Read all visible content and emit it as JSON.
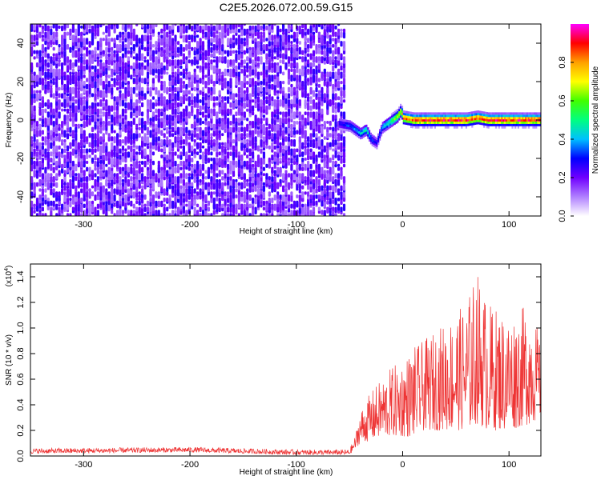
{
  "title": "C2E5.2026.072.00.59.G15",
  "chart_data": [
    {
      "type": "heatmap",
      "name": "spectrogram",
      "xlabel": "Height of straight line (km)",
      "ylabel": "Frequency (Hz)",
      "xlim": [
        -350,
        130
      ],
      "ylim": [
        -50,
        50
      ],
      "x_ticks": [
        -300,
        -200,
        -100,
        0,
        100
      ],
      "y_ticks": [
        -40,
        -20,
        0,
        20,
        40
      ],
      "noise_region": {
        "x": [
          -350,
          -55
        ],
        "y": [
          -50,
          50
        ],
        "description_level": "low (0.1-0.25)"
      },
      "signal_track": {
        "x": [
          -60,
          -50,
          -45,
          -40,
          -35,
          -30,
          -25,
          -20,
          -10,
          -5,
          -2,
          0,
          10,
          20,
          40,
          60,
          70,
          80,
          100,
          130
        ],
        "freq": [
          -2,
          -3,
          -5,
          -7,
          -5,
          -10,
          -12,
          -4,
          0,
          2,
          5,
          1,
          0,
          0,
          0,
          0,
          1,
          0,
          0,
          0
        ],
        "amplitude": [
          0.3,
          0.35,
          0.4,
          0.45,
          0.5,
          0.35,
          0.3,
          0.4,
          0.6,
          0.7,
          0.75,
          0.85,
          0.9,
          0.95,
          0.95,
          0.95,
          0.9,
          0.95,
          0.95,
          0.95
        ]
      }
    },
    {
      "type": "colorbar",
      "name": "amplitude-colorbar",
      "label": "Normalized spectral amplitude",
      "range": [
        0.0,
        1.0
      ],
      "ticks": [
        0.0,
        0.2,
        0.4,
        0.6,
        0.8
      ],
      "tick_labels": [
        "0.0",
        "0.2",
        "0.4",
        "0.6",
        "0.8"
      ],
      "colors": [
        "#ffffff",
        "#b080ff",
        "#7000ff",
        "#0000ff",
        "#00c0ff",
        "#00ff80",
        "#40ff00",
        "#ffff00",
        "#ffa000",
        "#ff0000",
        "#ff00ff"
      ]
    },
    {
      "type": "line",
      "name": "snr",
      "xlabel": "Height of straight line (km)",
      "ylabel": "SNR (10 * v/v)",
      "y_multiplier": "(x10",
      "y_multiplier_exp": "4",
      "xlim": [
        -350,
        130
      ],
      "ylim": [
        0.0,
        1.5
      ],
      "x_ticks": [
        -300,
        -200,
        -100,
        0,
        100
      ],
      "y_ticks": [
        0.0,
        0.2,
        0.4,
        0.6,
        0.8,
        1.0,
        1.2,
        1.4
      ],
      "y_tick_labels": [
        "0.0",
        "0.2",
        "0.4",
        "0.6",
        "0.8",
        "1.0",
        "1.2",
        "1.4"
      ],
      "color": "#ee3333",
      "envelope": {
        "x": [
          -350,
          -200,
          -150,
          -100,
          -50,
          -45,
          -40,
          -30,
          -20,
          -10,
          0,
          10,
          20,
          40,
          60,
          70,
          80,
          100,
          120,
          130
        ],
        "low": [
          0.02,
          0.03,
          0.02,
          0.01,
          0.01,
          0.05,
          0.1,
          0.12,
          0.15,
          0.15,
          0.15,
          0.15,
          0.2,
          0.2,
          0.2,
          0.25,
          0.2,
          0.2,
          0.25,
          0.3
        ],
        "high": [
          0.06,
          0.07,
          0.06,
          0.05,
          0.05,
          0.15,
          0.35,
          0.5,
          0.6,
          0.7,
          0.75,
          0.85,
          0.9,
          1.05,
          1.2,
          1.45,
          1.2,
          1.1,
          1.2,
          0.9
        ]
      }
    }
  ]
}
